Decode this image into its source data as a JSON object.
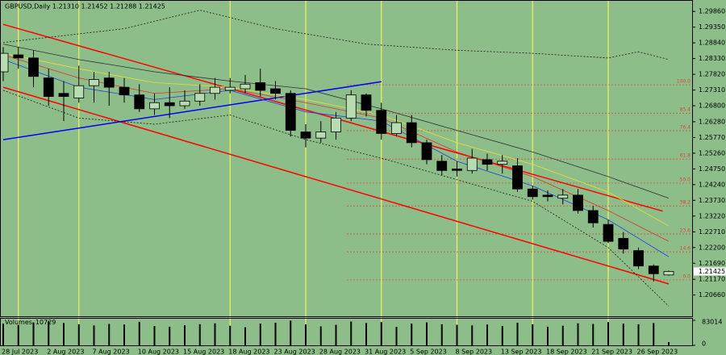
{
  "chart_data": {
    "type": "candlestick",
    "title": "GBPUSD,Daily  1.21310 1.21452 1.21288 1.21425",
    "categories": [
      "28 Jul 2023",
      null,
      null,
      "2 Aug 2023",
      null,
      null,
      "7 Aug 2023",
      null,
      null,
      "10 Aug 2023",
      null,
      null,
      "15 Aug 2023",
      null,
      null,
      "18 Aug 2023",
      null,
      null,
      "23 Aug 2023",
      null,
      null,
      "28 Aug 2023",
      null,
      null,
      "31 Aug 2023",
      null,
      null,
      "5 Sep 2023",
      null,
      null,
      "8 Sep 2023",
      null,
      null,
      "13 Sep 2023",
      null,
      null,
      "18 Sep 2023",
      null,
      null,
      "21 Sep 2023",
      null,
      null,
      "26 Sep 2023",
      null,
      null
    ],
    "open": [
      1.279,
      1.2845,
      1.2835,
      1.277,
      1.272,
      1.2705,
      1.2745,
      1.277,
      1.274,
      1.2715,
      1.267,
      1.269,
      1.268,
      1.2695,
      1.272,
      1.273,
      1.2735,
      1.2755,
      1.2735,
      1.272,
      1.2595,
      1.2575,
      1.2595,
      1.264,
      1.2715,
      1.2665,
      1.259,
      1.2625,
      1.256,
      1.25,
      1.2475,
      1.247,
      1.2505,
      1.249,
      1.2485,
      1.241,
      1.239,
      1.238,
      1.239,
      1.234,
      1.2295,
      1.225,
      1.221,
      1.216,
      1.2131
    ],
    "high": [
      1.287,
      1.287,
      1.286,
      1.28,
      1.276,
      1.281,
      1.279,
      1.279,
      1.277,
      1.275,
      1.272,
      1.274,
      1.273,
      1.275,
      1.277,
      1.277,
      1.278,
      1.28,
      1.276,
      1.273,
      1.262,
      1.263,
      1.266,
      1.273,
      1.272,
      1.269,
      1.265,
      1.265,
      1.257,
      1.252,
      1.25,
      1.254,
      1.2525,
      1.252,
      1.251,
      1.242,
      1.2405,
      1.241,
      1.241,
      1.2355,
      1.231,
      1.227,
      1.222,
      1.2165,
      1.21452
    ],
    "low": [
      1.276,
      1.28,
      1.274,
      1.268,
      1.263,
      1.269,
      1.269,
      1.268,
      1.269,
      1.266,
      1.265,
      1.264,
      1.267,
      1.268,
      1.27,
      1.272,
      1.272,
      1.271,
      1.27,
      1.258,
      1.2545,
      1.256,
      1.257,
      1.263,
      1.2645,
      1.257,
      1.258,
      1.2545,
      1.249,
      1.2455,
      1.245,
      1.246,
      1.247,
      1.246,
      1.24,
      1.2375,
      1.237,
      1.236,
      1.233,
      1.2285,
      1.2235,
      1.22,
      1.215,
      1.211,
      1.21288
    ],
    "close": [
      1.285,
      1.2835,
      1.2775,
      1.271,
      1.271,
      1.2745,
      1.2765,
      1.274,
      1.2715,
      1.267,
      1.269,
      1.268,
      1.2695,
      1.272,
      1.274,
      1.274,
      1.275,
      1.273,
      1.272,
      1.26,
      1.2575,
      1.2595,
      1.264,
      1.2715,
      1.2665,
      1.259,
      1.2625,
      1.256,
      1.2505,
      1.247,
      1.247,
      1.251,
      1.249,
      1.25,
      1.241,
      1.2385,
      1.2385,
      1.239,
      1.234,
      1.23,
      1.224,
      1.2215,
      1.216,
      1.2135,
      1.21425
    ],
    "bull_color": "#b7dcb1",
    "bear_color": "#000000",
    "ylim": [
      1.1997,
      1.3023
    ],
    "yticks": [
      {
        "value": 1.2986,
        "label": "1.29860"
      },
      {
        "value": 1.2935,
        "label": "1.29350"
      },
      {
        "value": 1.2884,
        "label": "1.28840"
      },
      {
        "value": 1.2833,
        "label": "1.28330"
      },
      {
        "value": 1.2782,
        "label": "1.27820"
      },
      {
        "value": 1.2731,
        "label": "1.27310"
      },
      {
        "value": 1.268,
        "label": "1.26800"
      },
      {
        "value": 1.2628,
        "label": "1.26280"
      },
      {
        "value": 1.2577,
        "label": "1.25770"
      },
      {
        "value": 1.2526,
        "label": "1.25260"
      },
      {
        "value": 1.2475,
        "label": "1.24750"
      },
      {
        "value": 1.2424,
        "label": "1.24240"
      },
      {
        "value": 1.2373,
        "label": "1.23730"
      },
      {
        "value": 1.2322,
        "label": "1.23220"
      },
      {
        "value": 1.2271,
        "label": "1.22710"
      },
      {
        "value": 1.222,
        "label": "1.22200"
      },
      {
        "value": 1.2169,
        "label": "1.21690"
      },
      {
        "value": 1.2117,
        "label": "1.21170"
      },
      {
        "value": 1.2066,
        "label": "1.20660"
      }
    ],
    "last_price": {
      "value": 1.21425,
      "label": "1.21425"
    },
    "fib_levels": [
      {
        "value": 1.2748,
        "label": "100.0"
      },
      {
        "value": 1.2656,
        "label": "85.4"
      },
      {
        "value": 1.2599,
        "label": "76.4"
      },
      {
        "value": 1.2507,
        "label": "61.8"
      },
      {
        "value": 1.2429,
        "label": "50.0"
      },
      {
        "value": 1.2355,
        "label": "38.2"
      },
      {
        "value": 1.2264,
        "label": "23.6"
      },
      {
        "value": 1.2206,
        "label": "14.6"
      },
      {
        "value": 1.2115,
        "label": "0.0"
      }
    ],
    "fib_color": "#e0403a",
    "overlays": [
      {
        "color": "#ff0000",
        "width": 1.5,
        "dash": false,
        "points": [
          [
            0,
            1.2944
          ],
          [
            43.6,
            1.2338
          ]
        ]
      },
      {
        "color": "#ff0000",
        "width": 1.5,
        "dash": false,
        "points": [
          [
            0,
            1.274
          ],
          [
            44,
            1.2102
          ]
        ]
      },
      {
        "color": "#0000ff",
        "width": 1.5,
        "dash": false,
        "points": [
          [
            0,
            1.257
          ],
          [
            25,
            1.2758
          ]
        ]
      },
      {
        "color": "#2f2f2f",
        "width": 0.8,
        "dash": false,
        "points": [
          [
            0,
            1.288
          ],
          [
            5,
            1.283
          ],
          [
            10,
            1.279
          ],
          [
            15,
            1.276
          ],
          [
            20,
            1.2735
          ],
          [
            25,
            1.267
          ],
          [
            30,
            1.26
          ],
          [
            35,
            1.253
          ],
          [
            40,
            1.245
          ],
          [
            44,
            1.238
          ]
        ]
      },
      {
        "color": "#e8e030",
        "width": 0.8,
        "dash": false,
        "points": [
          [
            0,
            1.285
          ],
          [
            5,
            1.28
          ],
          [
            10,
            1.2755
          ],
          [
            15,
            1.274
          ],
          [
            20,
            1.27
          ],
          [
            25,
            1.265
          ],
          [
            30,
            1.256
          ],
          [
            35,
            1.249
          ],
          [
            40,
            1.24
          ],
          [
            44,
            1.229
          ]
        ]
      },
      {
        "color": "#e03030",
        "width": 0.8,
        "dash": false,
        "points": [
          [
            0,
            1.2845
          ],
          [
            5,
            1.277
          ],
          [
            10,
            1.272
          ],
          [
            15,
            1.2735
          ],
          [
            20,
            1.269
          ],
          [
            25,
            1.264
          ],
          [
            30,
            1.253
          ],
          [
            35,
            1.245
          ],
          [
            40,
            1.234
          ],
          [
            44,
            1.224
          ]
        ]
      },
      {
        "color": "#2040e0",
        "width": 0.8,
        "dash": false,
        "points": [
          [
            0,
            1.283
          ],
          [
            5,
            1.274
          ],
          [
            10,
            1.27
          ],
          [
            15,
            1.273
          ],
          [
            20,
            1.266
          ],
          [
            25,
            1.263
          ],
          [
            30,
            1.25
          ],
          [
            35,
            1.242
          ],
          [
            40,
            1.231
          ],
          [
            44,
            1.219
          ]
        ]
      },
      {
        "color": "#1a1a1a",
        "width": 0.8,
        "dash": true,
        "points": [
          [
            0,
            1.2885
          ],
          [
            8,
            1.293
          ],
          [
            13,
            1.299
          ],
          [
            18,
            1.293
          ],
          [
            24,
            1.288
          ],
          [
            30,
            1.286
          ],
          [
            35,
            1.285
          ],
          [
            40,
            1.2835
          ],
          [
            42,
            1.2855
          ],
          [
            44,
            1.283
          ]
        ]
      },
      {
        "color": "#1a1a1a",
        "width": 0.8,
        "dash": true,
        "points": [
          [
            0,
            1.273
          ],
          [
            5,
            1.264
          ],
          [
            10,
            1.262
          ],
          [
            15,
            1.265
          ],
          [
            20,
            1.257
          ],
          [
            25,
            1.251
          ],
          [
            30,
            1.244
          ],
          [
            35,
            1.237
          ],
          [
            40,
            1.222
          ],
          [
            44,
            1.203
          ]
        ]
      }
    ],
    "volumes": {
      "title": "Volumes",
      "color": "#000000",
      "values": [
        72000,
        68000,
        76000,
        80000,
        74000,
        70000,
        66000,
        71000,
        69000,
        78000,
        64000,
        62000,
        67000,
        70000,
        73000,
        65000,
        60000,
        72000,
        75000,
        82000,
        70000,
        63000,
        68000,
        79000,
        74000,
        77000,
        61000,
        72000,
        76000,
        70000,
        68000,
        66000,
        69000,
        64000,
        75000,
        70000,
        62000,
        65000,
        73000,
        71000,
        77000,
        72000,
        70000,
        74000,
        10729
      ],
      "ylim": [
        0,
        83014
      ],
      "yticks": [
        83014,
        0
      ]
    }
  }
}
